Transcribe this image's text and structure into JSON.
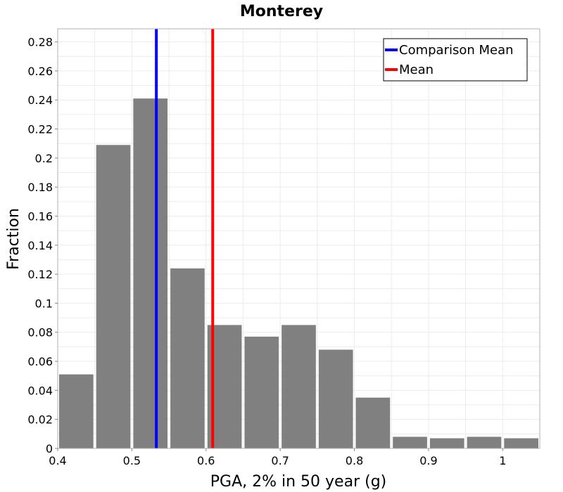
{
  "chart_data": {
    "type": "bar",
    "title": "Monterey",
    "xlabel": "PGA, 2% in 50 year (g)",
    "ylabel": "Fraction",
    "xlim": [
      0.4,
      1.05
    ],
    "ylim": [
      0,
      0.289
    ],
    "grid": true,
    "legend_position": "top-right",
    "bin_width": 0.05,
    "x": [
      0.425,
      0.475,
      0.525,
      0.575,
      0.625,
      0.675,
      0.725,
      0.775,
      0.825,
      0.875,
      0.925,
      0.975,
      1.025
    ],
    "values": [
      0.051,
      0.209,
      0.241,
      0.124,
      0.085,
      0.077,
      0.085,
      0.068,
      0.035,
      0.008,
      0.007,
      0.008,
      0.007
    ],
    "bar_color": "#808080",
    "xticks": [
      0.4,
      0.5,
      0.6,
      0.7,
      0.8,
      0.9,
      1
    ],
    "xtick_labels": [
      "0.4",
      "0.5",
      "0.6",
      "0.7",
      "0.8",
      "0.9",
      "1"
    ],
    "yticks": [
      0,
      0.02,
      0.04,
      0.06,
      0.08,
      0.1,
      0.12,
      0.14,
      0.16,
      0.18,
      0.2,
      0.22,
      0.24,
      0.26,
      0.28
    ],
    "ytick_labels": [
      "0",
      "0.02",
      "0.04",
      "0.06",
      "0.08",
      "0.1",
      "0.12",
      "0.14",
      "0.16",
      "0.18",
      "0.2",
      "0.22",
      "0.24",
      "0.26",
      "0.28"
    ],
    "vlines": [
      {
        "name": "Comparison Mean",
        "x": 0.533,
        "color": "#0000ff"
      },
      {
        "name": "Mean",
        "x": 0.609,
        "color": "#ff0000"
      }
    ]
  }
}
